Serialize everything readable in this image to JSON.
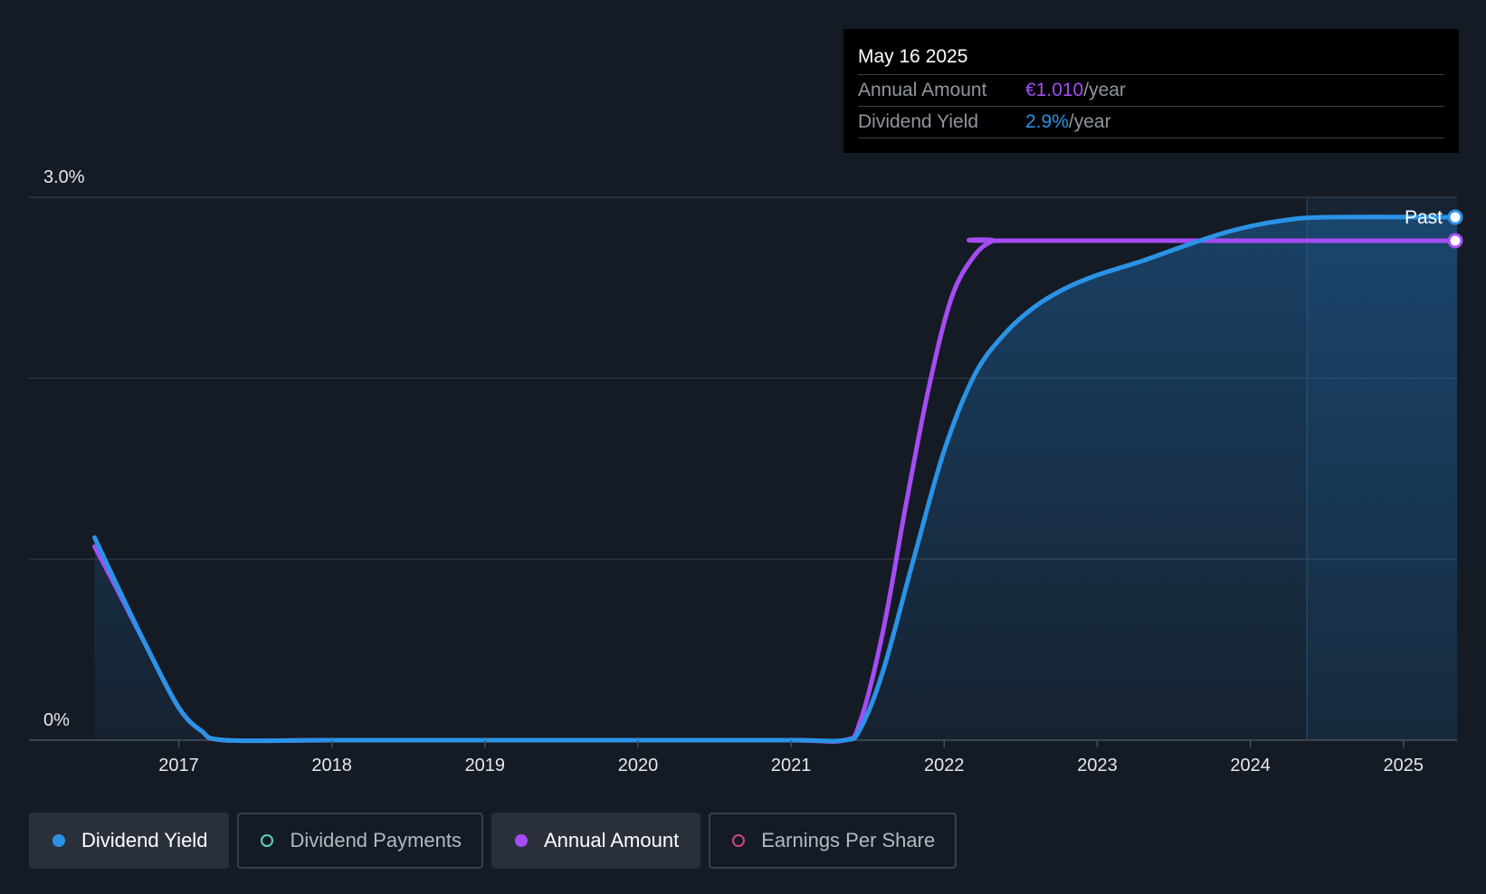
{
  "tooltip": {
    "date": "May 16 2025",
    "rows": [
      {
        "label": "Annual Amount",
        "value": "€1.010",
        "unit": "/year",
        "color": "#a64cf5"
      },
      {
        "label": "Dividend Yield",
        "value": "2.9%",
        "unit": "/year",
        "color": "#2a93e6"
      }
    ]
  },
  "legend": [
    {
      "label": "Dividend Yield",
      "active": true,
      "color": "#2a93e6",
      "filled": true
    },
    {
      "label": "Dividend Payments",
      "active": false,
      "color": "#5ad1c6",
      "filled": false
    },
    {
      "label": "Annual Amount",
      "active": true,
      "color": "#a64cf5",
      "filled": true
    },
    {
      "label": "Earnings Per Share",
      "active": false,
      "color": "#d0477d",
      "filled": false
    }
  ],
  "chart_data": {
    "type": "line",
    "y_tick_labels": [
      "3.0%",
      "0%"
    ],
    "ylim": [
      0,
      3.0
    ],
    "xlim": [
      2016.4,
      2025.35
    ],
    "x_ticks": [
      2017,
      2018,
      2019,
      2020,
      2021,
      2022,
      2023,
      2024,
      2025
    ],
    "x_tick_labels": [
      "2017",
      "2018",
      "2019",
      "2020",
      "2021",
      "2022",
      "2023",
      "2024",
      "2025"
    ],
    "past_label": "Past",
    "past_start": 2024.37,
    "grid": true,
    "series": [
      {
        "name": "Dividend Yield",
        "color": "#2a93e6",
        "fill": true,
        "points": [
          [
            2016.45,
            1.12
          ],
          [
            2016.6,
            0.85
          ],
          [
            2016.8,
            0.5
          ],
          [
            2017.0,
            0.18
          ],
          [
            2017.15,
            0.05
          ],
          [
            2017.3,
            0.0
          ],
          [
            2018.0,
            0.0
          ],
          [
            2019.0,
            0.0
          ],
          [
            2020.0,
            0.0
          ],
          [
            2021.0,
            0.0
          ],
          [
            2021.35,
            0.0
          ],
          [
            2021.45,
            0.06
          ],
          [
            2021.6,
            0.38
          ],
          [
            2021.8,
            1.0
          ],
          [
            2022.0,
            1.6
          ],
          [
            2022.2,
            2.02
          ],
          [
            2022.4,
            2.25
          ],
          [
            2022.6,
            2.4
          ],
          [
            2022.8,
            2.5
          ],
          [
            2023.0,
            2.57
          ],
          [
            2023.3,
            2.65
          ],
          [
            2023.6,
            2.74
          ],
          [
            2023.9,
            2.82
          ],
          [
            2024.2,
            2.87
          ],
          [
            2024.5,
            2.89
          ],
          [
            2025.35,
            2.89
          ]
        ]
      },
      {
        "name": "Annual Amount",
        "color": "#a64cf5",
        "fill": false,
        "points": [
          [
            2016.45,
            1.07
          ],
          [
            2016.6,
            0.83
          ],
          [
            2016.8,
            0.5
          ],
          [
            2017.0,
            0.18
          ],
          [
            2017.15,
            0.05
          ],
          [
            2017.3,
            0.0
          ],
          [
            2018.0,
            0.0
          ],
          [
            2019.0,
            0.0
          ],
          [
            2020.0,
            0.0
          ],
          [
            2021.0,
            0.0
          ],
          [
            2021.35,
            0.0
          ],
          [
            2021.45,
            0.1
          ],
          [
            2021.6,
            0.6
          ],
          [
            2021.75,
            1.3
          ],
          [
            2021.9,
            1.95
          ],
          [
            2022.05,
            2.45
          ],
          [
            2022.2,
            2.68
          ],
          [
            2022.32,
            2.76
          ],
          [
            2022.4,
            2.76
          ],
          [
            2025.35,
            2.76
          ]
        ]
      }
    ]
  }
}
